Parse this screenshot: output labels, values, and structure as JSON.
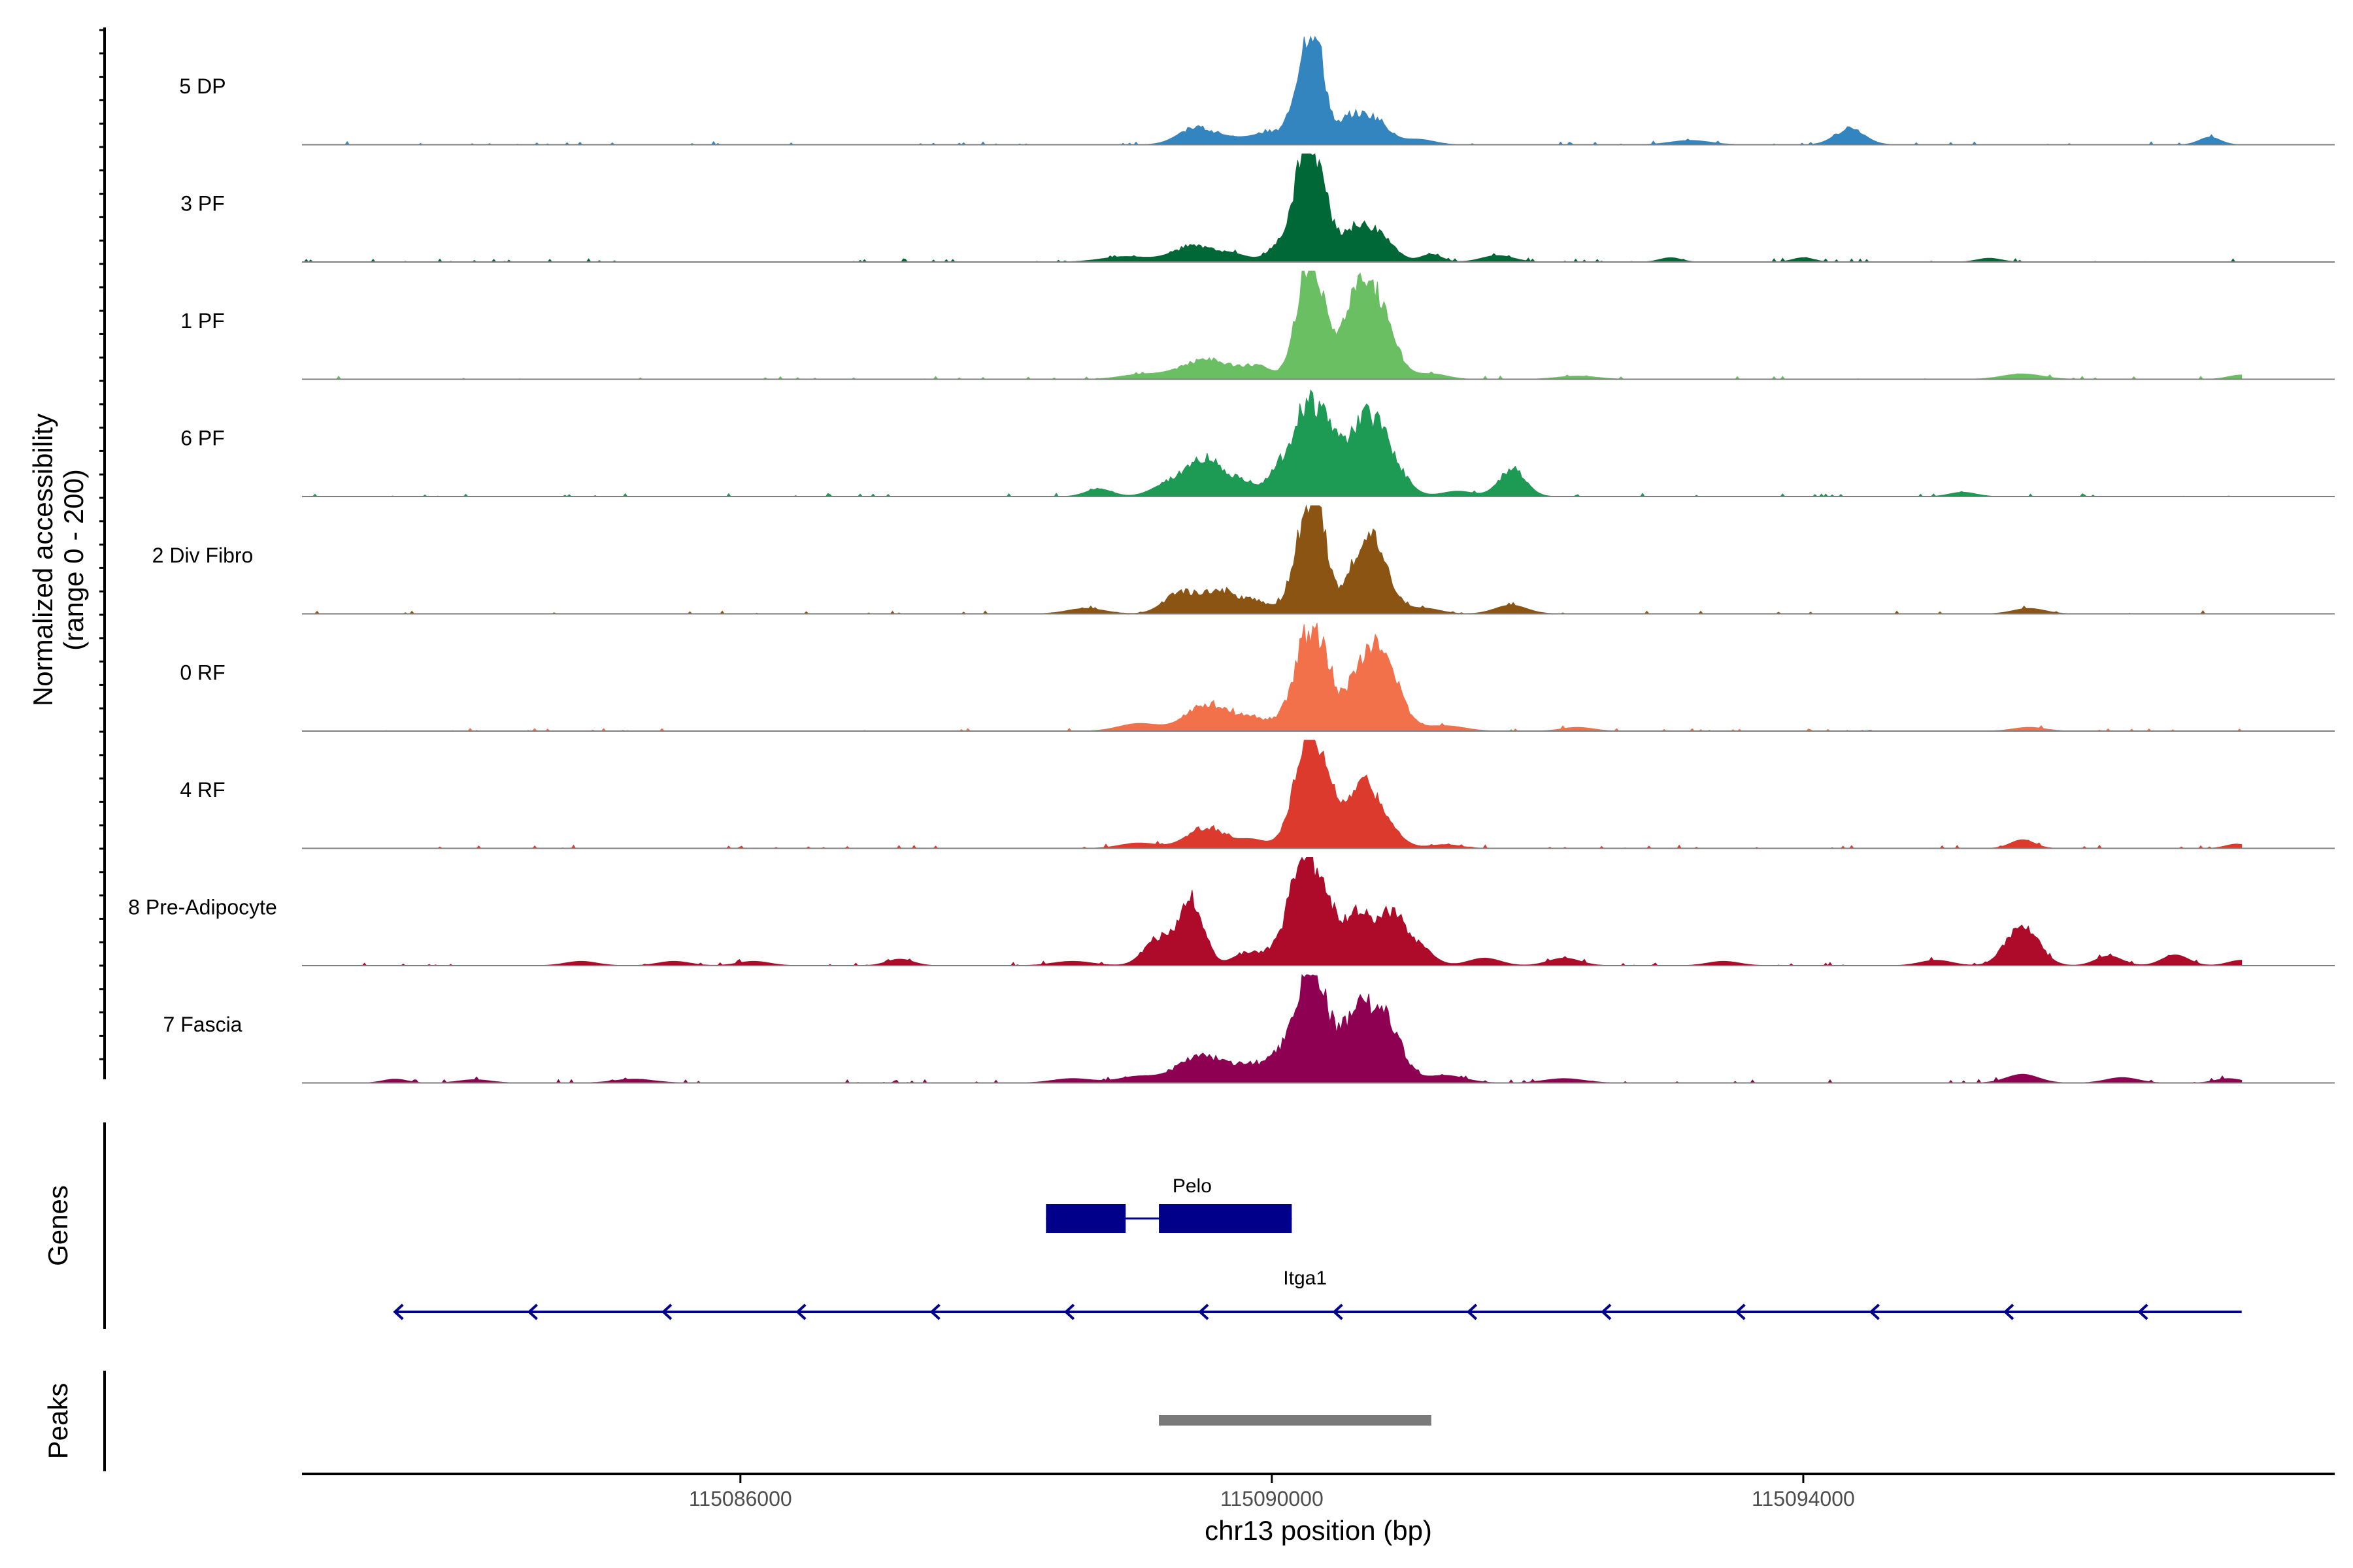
{
  "chart_data": {
    "type": "area",
    "title": "",
    "ylabel_line1": "Normalized accessibility",
    "ylabel_line2": "(range 0 - 200)",
    "xlabel": "chr13 position (bp)",
    "xlim": [
      115082700,
      115098000
    ],
    "ylim": [
      0,
      200
    ],
    "x_ticks": [
      115086000,
      115090000,
      115094000
    ],
    "x_tick_labels": [
      "115086000",
      "115090000",
      "115094000"
    ],
    "data_extent": [
      115082700,
      115097300
    ],
    "peak_model": {
      "comment": "each series is the sum of gaussian peaks: [center_bp, height (0-200), width_bp]",
      "baseline_noise": 3
    },
    "series": [
      {
        "name": "5 DP",
        "color": "#3385c0",
        "peaks": [
          [
            115089420,
            30,
            130
          ],
          [
            115089700,
            12,
            150
          ],
          [
            115090000,
            22,
            120
          ],
          [
            115090250,
            150,
            80
          ],
          [
            115090350,
            120,
            70
          ],
          [
            115090580,
            40,
            80
          ],
          [
            115090760,
            50,
            110
          ],
          [
            115091100,
            10,
            120
          ],
          [
            115093150,
            8,
            150
          ],
          [
            115094350,
            30,
            110
          ],
          [
            115097060,
            14,
            80
          ]
        ]
      },
      {
        "name": "3 PF",
        "color": "#006837",
        "peaks": [
          [
            115088900,
            10,
            180
          ],
          [
            115089400,
            28,
            150
          ],
          [
            115089700,
            14,
            120
          ],
          [
            115090150,
            55,
            120
          ],
          [
            115090250,
            160,
            70
          ],
          [
            115090380,
            110,
            70
          ],
          [
            115090580,
            45,
            90
          ],
          [
            115090780,
            60,
            120
          ],
          [
            115091200,
            14,
            80
          ],
          [
            115091700,
            12,
            120
          ],
          [
            115093000,
            8,
            80
          ],
          [
            115094000,
            8,
            80
          ],
          [
            115095400,
            7,
            90
          ]
        ]
      },
      {
        "name": "1 PF",
        "color": "#6abf62",
        "peaks": [
          [
            115089000,
            8,
            150
          ],
          [
            115089500,
            35,
            200
          ],
          [
            115089900,
            20,
            120
          ],
          [
            115090250,
            170,
            80
          ],
          [
            115090350,
            110,
            70
          ],
          [
            115090620,
            120,
            120
          ],
          [
            115090800,
            120,
            120
          ],
          [
            115091200,
            10,
            120
          ],
          [
            115092300,
            6,
            150
          ],
          [
            115095650,
            10,
            150
          ],
          [
            115097300,
            8,
            100
          ]
        ]
      },
      {
        "name": "6 PF",
        "color": "#1d9a54",
        "peaks": [
          [
            115088700,
            14,
            100
          ],
          [
            115089200,
            18,
            120
          ],
          [
            115089500,
            70,
            150
          ],
          [
            115089800,
            20,
            100
          ],
          [
            115090100,
            60,
            110
          ],
          [
            115090270,
            140,
            90
          ],
          [
            115090420,
            90,
            80
          ],
          [
            115090700,
            140,
            140
          ],
          [
            115090900,
            40,
            120
          ],
          [
            115091400,
            10,
            120
          ],
          [
            115091810,
            50,
            100
          ],
          [
            115095200,
            8,
            100
          ]
        ]
      },
      {
        "name": "2 Div Fibro",
        "color": "#8b5413",
        "peaks": [
          [
            115088600,
            10,
            140
          ],
          [
            115089300,
            35,
            120
          ],
          [
            115089600,
            42,
            140
          ],
          [
            115089900,
            20,
            110
          ],
          [
            115090250,
            160,
            90
          ],
          [
            115090370,
            110,
            70
          ],
          [
            115090730,
            145,
            130
          ],
          [
            115091150,
            10,
            120
          ],
          [
            115091800,
            16,
            120
          ],
          [
            115095700,
            10,
            120
          ]
        ]
      },
      {
        "name": "0 RF",
        "color": "#f2714b",
        "peaks": [
          [
            115089000,
            14,
            150
          ],
          [
            115089520,
            50,
            160
          ],
          [
            115089850,
            22,
            120
          ],
          [
            115090150,
            40,
            100
          ],
          [
            115090270,
            150,
            80
          ],
          [
            115090400,
            100,
            70
          ],
          [
            115090680,
            110,
            120
          ],
          [
            115090860,
            100,
            120
          ],
          [
            115091300,
            10,
            150
          ],
          [
            115092300,
            7,
            120
          ],
          [
            115095700,
            7,
            120
          ]
        ]
      },
      {
        "name": "4 RF",
        "color": "#dc3a2c",
        "peaks": [
          [
            115089000,
            10,
            140
          ],
          [
            115089500,
            38,
            140
          ],
          [
            115089850,
            16,
            110
          ],
          [
            115090200,
            65,
            100
          ],
          [
            115090280,
            150,
            80
          ],
          [
            115090420,
            100,
            80
          ],
          [
            115090560,
            30,
            80
          ],
          [
            115090710,
            110,
            100
          ],
          [
            115090900,
            26,
            100
          ],
          [
            115091300,
            7,
            120
          ],
          [
            115095650,
            16,
            90
          ],
          [
            115097260,
            8,
            80
          ]
        ]
      },
      {
        "name": "8 Pre-Adipocyte",
        "color": "#ae0a29",
        "peaks": [
          [
            115084800,
            8,
            120
          ],
          [
            115085500,
            8,
            120
          ],
          [
            115086100,
            8,
            120
          ],
          [
            115087200,
            12,
            100
          ],
          [
            115088500,
            8,
            150
          ],
          [
            115089150,
            50,
            110
          ],
          [
            115089400,
            120,
            90
          ],
          [
            115089800,
            22,
            100
          ],
          [
            115090050,
            30,
            110
          ],
          [
            115090230,
            180,
            90
          ],
          [
            115090400,
            110,
            90
          ],
          [
            115090640,
            90,
            90
          ],
          [
            115090880,
            95,
            110
          ],
          [
            115091100,
            32,
            110
          ],
          [
            115091600,
            14,
            120
          ],
          [
            115092200,
            14,
            120
          ],
          [
            115093400,
            8,
            120
          ],
          [
            115095000,
            10,
            120
          ],
          [
            115095650,
            75,
            120
          ],
          [
            115096300,
            18,
            100
          ],
          [
            115096800,
            20,
            100
          ],
          [
            115097300,
            10,
            100
          ]
        ]
      },
      {
        "name": "7 Fascia",
        "color": "#8e0152",
        "peaks": [
          [
            115083400,
            7,
            90
          ],
          [
            115084000,
            6,
            120
          ],
          [
            115085200,
            7,
            150
          ],
          [
            115088500,
            8,
            150
          ],
          [
            115089000,
            12,
            150
          ],
          [
            115089450,
            50,
            160
          ],
          [
            115089800,
            30,
            140
          ],
          [
            115090100,
            60,
            110
          ],
          [
            115090260,
            155,
            80
          ],
          [
            115090380,
            110,
            70
          ],
          [
            115090620,
            120,
            120
          ],
          [
            115090850,
            115,
            120
          ],
          [
            115091300,
            14,
            150
          ],
          [
            115092200,
            8,
            150
          ],
          [
            115095650,
            16,
            120
          ],
          [
            115096400,
            10,
            120
          ],
          [
            115097200,
            8,
            100
          ]
        ]
      }
    ],
    "genes_track_label": "Genes",
    "genes": [
      {
        "name": "Pelo",
        "color": "#00008b",
        "exons": [
          [
            115088300,
            115088900
          ],
          [
            115089150,
            115090150
          ]
        ],
        "line_extent": [
          115088300,
          115090150
        ],
        "label_pos": 115089400
      },
      {
        "name": "Itga1",
        "color": "#00008b",
        "strand": "-",
        "extent": [
          115083400,
          115097300
        ],
        "label_pos": 115090250,
        "arrow_positions": [
          115083400,
          115084410,
          115085420,
          115086430,
          115087440,
          115088450,
          115089460,
          115090470,
          115091480,
          115092490,
          115093500,
          115094510,
          115095520,
          115096530
        ]
      }
    ],
    "peaks_track_label": "Peaks",
    "peak_regions": [
      {
        "start": 115089150,
        "end": 115091200,
        "color": "#7a7a7a"
      }
    ]
  }
}
